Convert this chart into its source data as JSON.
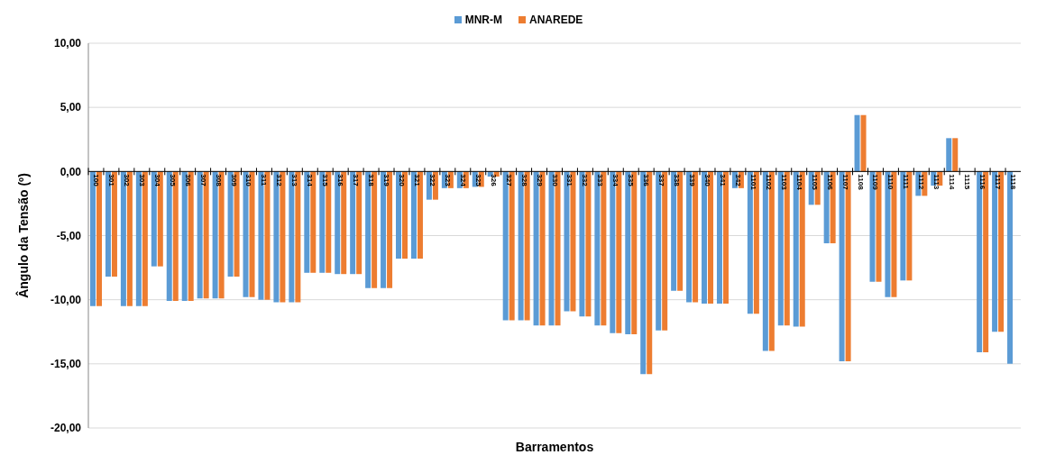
{
  "chart_data": {
    "type": "bar",
    "xlabel": "Barramentos",
    "ylabel": "Ângulo da Tensão (º)",
    "categories": [
      "100",
      "301",
      "302",
      "303",
      "304",
      "305",
      "306",
      "307",
      "308",
      "309",
      "310",
      "311",
      "312",
      "313",
      "314",
      "315",
      "316",
      "317",
      "318",
      "319",
      "320",
      "321",
      "322",
      "323",
      "324",
      "325",
      "326",
      "327",
      "328",
      "329",
      "330",
      "331",
      "332",
      "333",
      "334",
      "335",
      "336",
      "337",
      "338",
      "339",
      "340",
      "341",
      "342",
      "1101",
      "1102",
      "1103",
      "1104",
      "1105",
      "1106",
      "1107",
      "1108",
      "1109",
      "1110",
      "1111",
      "1112",
      "1113",
      "1114",
      "1115",
      "1116",
      "1117",
      "1118"
    ],
    "series": [
      {
        "name": "MNR-M",
        "color": "#5b9bd5",
        "values": [
          -10.5,
          -8.2,
          -10.5,
          -10.5,
          -7.4,
          -10.1,
          -10.1,
          -9.9,
          -9.9,
          -8.2,
          -9.8,
          -10.0,
          -10.2,
          -10.2,
          -7.9,
          -7.9,
          -8.0,
          -8.0,
          -9.1,
          -9.1,
          -6.8,
          -6.8,
          -2.2,
          -1.3,
          -1.3,
          -1.2,
          -0.4,
          -11.6,
          -11.6,
          -12.0,
          -12.0,
          -10.9,
          -11.3,
          -12.0,
          -12.6,
          -12.7,
          -15.8,
          -12.4,
          -9.3,
          -10.2,
          -10.3,
          -10.3,
          -1.3,
          -11.1,
          -14.0,
          -12.0,
          -12.1,
          -2.6,
          -5.6,
          -14.8,
          4.4,
          -8.6,
          -9.8,
          -8.5,
          -1.9,
          -1.1,
          2.6,
          0,
          -14.1,
          -12.5,
          -15.0
        ]
      },
      {
        "name": "ANAREDE",
        "color": "#ed7d31",
        "values": [
          -10.5,
          -8.2,
          -10.5,
          -10.5,
          -7.4,
          -10.1,
          -10.1,
          -9.9,
          -9.9,
          -8.2,
          -9.8,
          -10.0,
          -10.2,
          -10.2,
          -7.9,
          -7.9,
          -8.0,
          -8.0,
          -9.1,
          -9.1,
          -6.8,
          -6.8,
          -2.2,
          -1.3,
          -1.3,
          -1.2,
          -0.4,
          -11.6,
          -11.6,
          -12.0,
          -12.0,
          -10.9,
          -11.3,
          -12.0,
          -12.6,
          -12.7,
          -15.8,
          -12.4,
          -9.3,
          -10.2,
          -10.3,
          -10.3,
          -1.3,
          -11.1,
          -14.0,
          -12.0,
          -12.1,
          -2.6,
          -5.6,
          -14.8,
          4.4,
          -8.6,
          -9.8,
          -8.5,
          -1.9,
          -1.1,
          2.6,
          0,
          -14.1,
          -12.5,
          null
        ]
      }
    ],
    "ylim": [
      -20,
      10
    ],
    "yticks": [
      {
        "value": -20,
        "label": "-20,00"
      },
      {
        "value": -15,
        "label": "-15,00"
      },
      {
        "value": -10,
        "label": "-10,00"
      },
      {
        "value": -5,
        "label": "-5,00"
      },
      {
        "value": 0,
        "label": "0,00"
      },
      {
        "value": 5,
        "label": "5,00"
      },
      {
        "value": 10,
        "label": "10,00"
      }
    ],
    "grid": "y",
    "legend": "top"
  }
}
